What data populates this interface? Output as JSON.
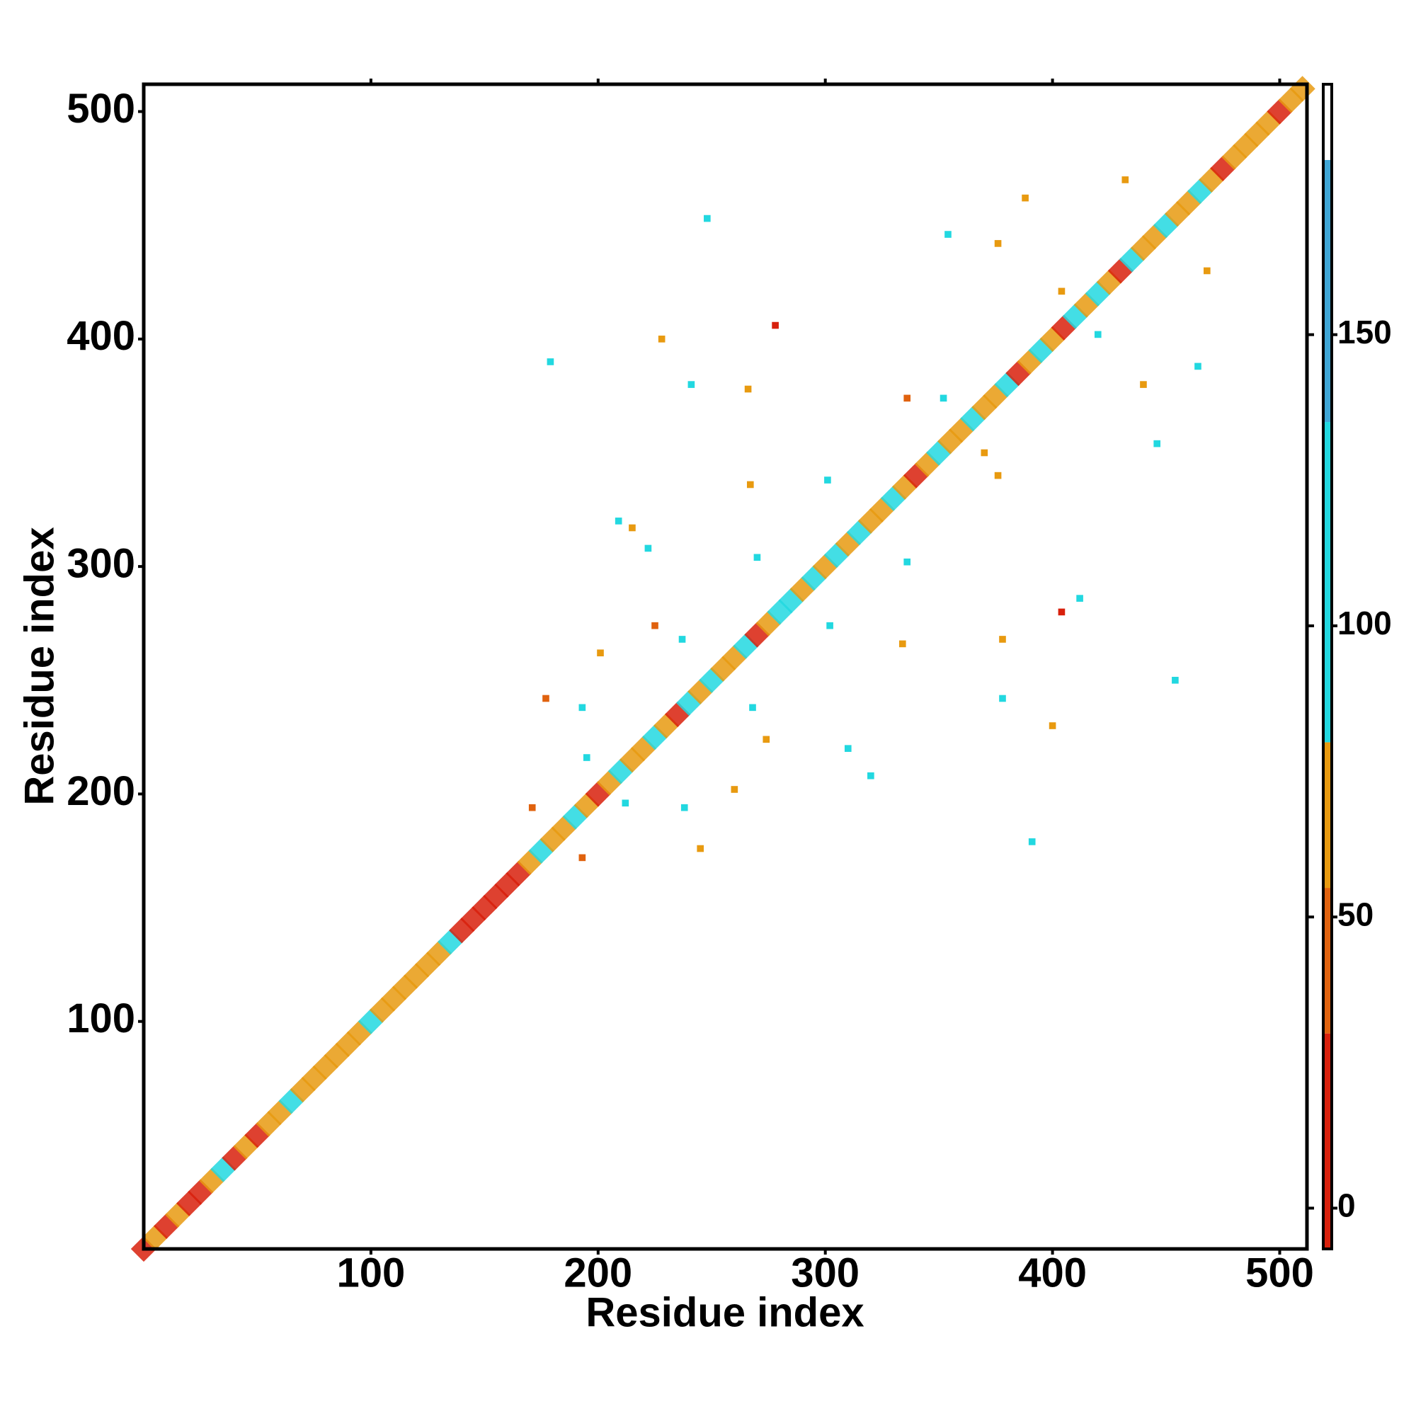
{
  "chart_data": {
    "type": "contact-map",
    "xlabel": "Residue index",
    "ylabel": "Residue index",
    "xlim": [
      0,
      512
    ],
    "ylim": [
      0,
      512
    ],
    "xticks": [
      100,
      200,
      300,
      400,
      500
    ],
    "yticks": [
      100,
      200,
      300,
      400,
      500
    ],
    "diagonal": {
      "x": [
        0,
        5,
        10,
        15,
        20,
        25,
        30,
        35,
        40,
        45,
        50,
        55,
        60,
        65,
        70,
        75,
        80,
        85,
        90,
        95,
        100,
        105,
        110,
        115,
        120,
        125,
        130,
        135,
        140,
        145,
        150,
        155,
        160,
        165,
        170,
        175,
        180,
        185,
        190,
        195,
        200,
        205,
        210,
        215,
        220,
        225,
        230,
        235,
        240,
        245,
        250,
        255,
        260,
        265,
        270,
        275,
        280,
        285,
        290,
        295,
        300,
        305,
        310,
        315,
        320,
        325,
        330,
        335,
        340,
        345,
        350,
        355,
        360,
        365,
        370,
        375,
        380,
        385,
        390,
        395,
        400,
        405,
        410,
        415,
        420,
        425,
        430,
        435,
        440,
        445,
        450,
        455,
        460,
        465,
        470,
        475,
        480,
        485,
        490,
        495,
        500,
        505,
        510
      ],
      "values": [
        10,
        55,
        10,
        55,
        10,
        10,
        55,
        100,
        10,
        55,
        10,
        55,
        55,
        100,
        55,
        55,
        55,
        55,
        55,
        55,
        100,
        55,
        55,
        55,
        55,
        55,
        55,
        100,
        10,
        10,
        10,
        10,
        10,
        10,
        55,
        100,
        55,
        55,
        100,
        55,
        10,
        55,
        100,
        55,
        55,
        100,
        55,
        10,
        100,
        55,
        100,
        55,
        55,
        100,
        10,
        55,
        100,
        100,
        55,
        100,
        55,
        100,
        55,
        100,
        55,
        55,
        100,
        55,
        10,
        55,
        100,
        55,
        55,
        100,
        55,
        55,
        100,
        10,
        55,
        100,
        55,
        10,
        100,
        55,
        100,
        55,
        10,
        100,
        55,
        55,
        100,
        55,
        55,
        100,
        55,
        10,
        55,
        55,
        55,
        55,
        10,
        55,
        55
      ]
    },
    "contacts": {
      "x": [
        209,
        215,
        222,
        270,
        336,
        301,
        267,
        376,
        336,
        352,
        370,
        446,
        376,
        354,
        388,
        432,
        468,
        464,
        440,
        404,
        420,
        248,
        278,
        228,
        241,
        266,
        179,
        225,
        237,
        201,
        177,
        193,
        268,
        274,
        195,
        260,
        238,
        245,
        171,
        193,
        212,
        302,
        334,
        320,
        310,
        378,
        378,
        400,
        391,
        404,
        412,
        454
      ],
      "y": [
        320,
        317,
        308,
        304,
        302,
        338,
        336,
        340,
        374,
        374,
        350,
        354,
        442,
        446,
        462,
        470,
        430,
        388,
        380,
        421,
        402,
        453,
        406,
        400,
        380,
        378,
        390,
        274,
        268,
        262,
        242,
        238,
        238,
        224,
        216,
        202,
        194,
        176,
        194,
        172,
        196,
        274,
        266,
        208,
        220,
        268,
        242,
        230,
        179,
        280,
        286,
        250
      ],
      "values": [
        95,
        60,
        110,
        110,
        105,
        110,
        55,
        55,
        50,
        110,
        55,
        110,
        55,
        110,
        60,
        60,
        60,
        100,
        55,
        60,
        110,
        110,
        15,
        55,
        110,
        60,
        110,
        30,
        110,
        60,
        30,
        110,
        110,
        55,
        110,
        55,
        110,
        55,
        50,
        30,
        110,
        110,
        55,
        95,
        110,
        55,
        110,
        55,
        90,
        15,
        110,
        95
      ]
    },
    "colorbar": {
      "ylim": [
        -7,
        193
      ],
      "yticks": [
        0,
        50,
        100,
        150
      ],
      "levels": [
        -7,
        30,
        55,
        80,
        135,
        180,
        193
      ],
      "colors": [
        "#d8200c",
        "#e0620e",
        "#e89a10",
        "#22d8e0",
        "#3fa6d6",
        "#ffffff"
      ]
    }
  }
}
